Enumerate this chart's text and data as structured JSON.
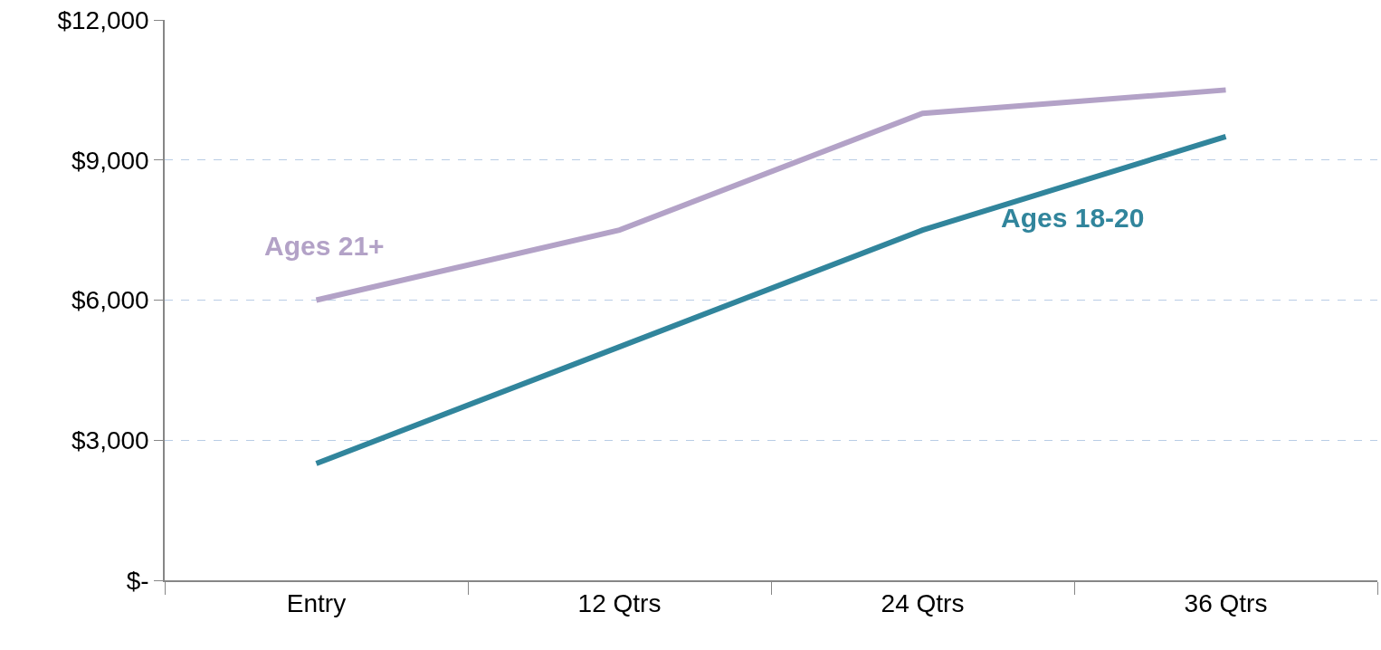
{
  "chart_data": {
    "type": "line",
    "categories": [
      "Entry",
      "12 Qtrs",
      "24 Qtrs",
      "36 Qtrs"
    ],
    "series": [
      {
        "name": "Ages 21+",
        "color": "#b3a2c7",
        "values": [
          6000,
          7500,
          10000,
          10500
        ]
      },
      {
        "name": "Ages 18-20",
        "color": "#31859c",
        "values": [
          2500,
          5000,
          7500,
          9500
        ]
      }
    ],
    "ylim": [
      0,
      12000
    ],
    "yticks": [
      {
        "value": 0,
        "label": "$-"
      },
      {
        "value": 3000,
        "label": "$3,000"
      },
      {
        "value": 6000,
        "label": "$6,000"
      },
      {
        "value": 9000,
        "label": "$9,000"
      },
      {
        "value": 12000,
        "label": "$12,000"
      }
    ],
    "grid": "y",
    "legend": false,
    "marker": "none",
    "line_style": "solid"
  }
}
